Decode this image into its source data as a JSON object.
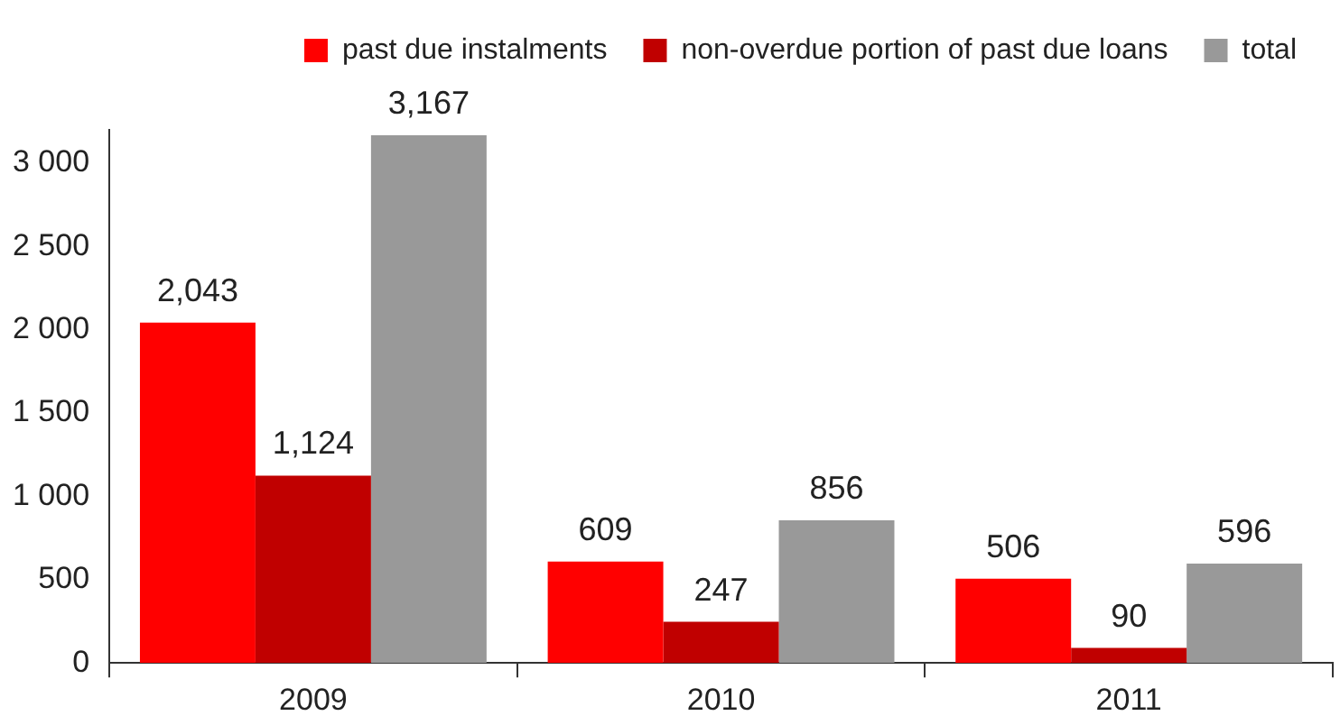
{
  "chart_data": {
    "type": "bar",
    "categories": [
      "2009",
      "2010",
      "2011"
    ],
    "series": [
      {
        "name": "past due instalments",
        "color": "#ff0000",
        "values": [
          2043,
          609,
          506
        ],
        "value_labels": [
          "2,043",
          "609",
          "506"
        ]
      },
      {
        "name": "non-overdue portion of past due loans",
        "color": "#c00000",
        "values": [
          1124,
          247,
          90
        ],
        "value_labels": [
          "1,124",
          "247",
          "90"
        ]
      },
      {
        "name": "total",
        "color": "#999999",
        "values": [
          3167,
          856,
          596
        ],
        "value_labels": [
          "3,167",
          "856",
          "596"
        ]
      }
    ],
    "ylim": [
      0,
      3200
    ],
    "yticks": [
      {
        "value": 0,
        "label": "0"
      },
      {
        "value": 500,
        "label": "500"
      },
      {
        "value": 1000,
        "label": "1 000"
      },
      {
        "value": 1500,
        "label": "1 500"
      },
      {
        "value": 2000,
        "label": "2 000"
      },
      {
        "value": 2500,
        "label": "2 500"
      },
      {
        "value": 3000,
        "label": "3 000"
      }
    ],
    "grid": false,
    "legend": "top"
  }
}
